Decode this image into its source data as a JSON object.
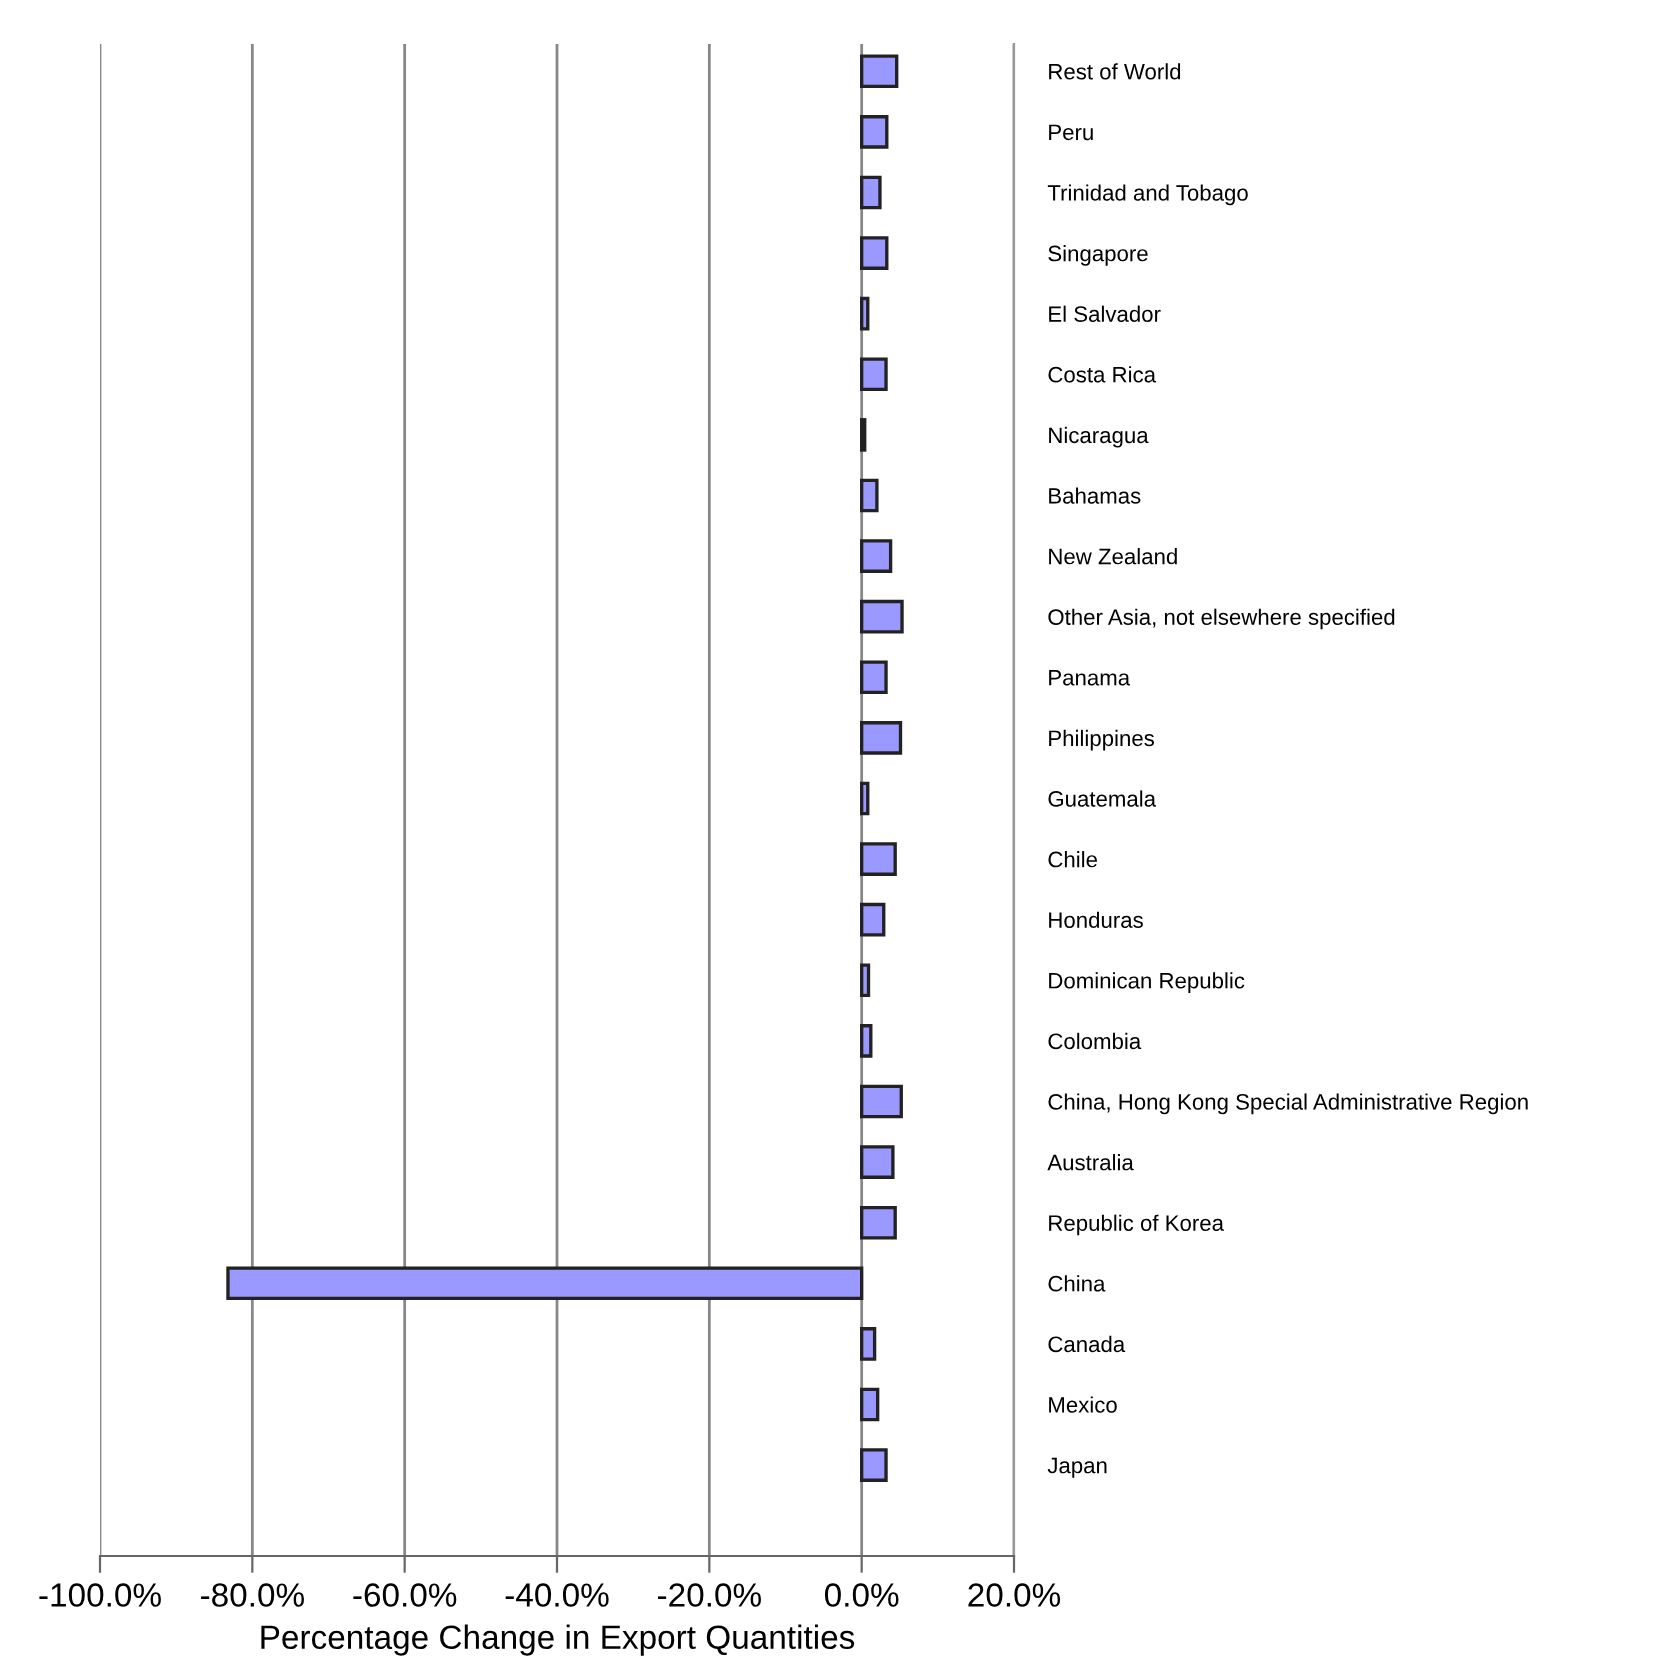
{
  "chart_data": {
    "type": "bar",
    "orientation": "horizontal",
    "xlabel": "Percentage Change in Export Quantities",
    "categories": [
      "Rest of World",
      "Peru",
      "Trinidad and Tobago",
      "Singapore",
      "El Salvador",
      "Costa Rica",
      "Nicaragua",
      "Bahamas",
      "New Zealand",
      "Other Asia, not elsewhere specified",
      "Panama",
      "Philippines",
      "Guatemala",
      "Chile",
      "Honduras",
      "Dominican Republic",
      "Colombia",
      "China, Hong Kong Special Administrative Region",
      "Australia",
      "Republic of Korea",
      "China",
      "Canada",
      "Mexico",
      "Japan"
    ],
    "values": [
      4.6,
      3.3,
      2.4,
      3.3,
      0.8,
      3.2,
      0.4,
      2.0,
      3.8,
      5.3,
      3.2,
      5.1,
      0.8,
      4.4,
      2.9,
      0.9,
      1.2,
      5.2,
      4.1,
      4.4,
      -83.2,
      1.7,
      2.1,
      3.2
    ],
    "color": "#9999ff",
    "xlim": [
      -100,
      20
    ],
    "xticks": [
      {
        "value": -100,
        "label": "-100.0%"
      },
      {
        "value": -80,
        "label": "-80.0%"
      },
      {
        "value": -60,
        "label": "-60.0%"
      },
      {
        "value": -40,
        "label": "-40.0%"
      },
      {
        "value": -20,
        "label": "-20.0%"
      },
      {
        "value": 0,
        "label": "0.0%"
      },
      {
        "value": 20,
        "label": "20.0%"
      }
    ],
    "grid": "x"
  }
}
